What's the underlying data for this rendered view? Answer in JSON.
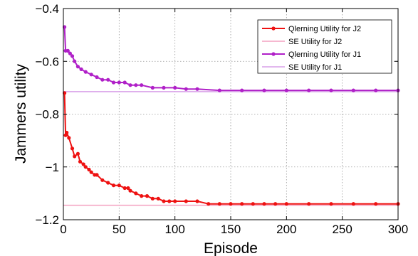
{
  "chart_data": {
    "type": "line",
    "title": "",
    "xlabel": "Episode",
    "ylabel": "Jammers utility",
    "xlim": [
      0,
      300
    ],
    "ylim": [
      -1.2,
      -0.4
    ],
    "xticks": [
      0,
      50,
      100,
      150,
      200,
      250,
      300
    ],
    "xtick_labels": [
      "0",
      "50",
      "100",
      "150",
      "200",
      "250",
      "300"
    ],
    "yticks": [
      -1.2,
      -1,
      -0.8,
      -0.6,
      -0.4
    ],
    "ytick_labels": [
      "−1.2",
      "−1",
      "−0.8",
      "−0.6",
      "−0.4"
    ],
    "grid": true,
    "legend_position": "top-right",
    "series": [
      {
        "name": "Qlerning Utility for J2",
        "color": "#ee1111",
        "marker": true,
        "x": [
          1,
          2,
          3,
          5,
          8,
          10,
          13,
          15,
          18,
          20,
          23,
          25,
          28,
          30,
          35,
          40,
          45,
          50,
          55,
          58,
          60,
          65,
          70,
          75,
          80,
          85,
          90,
          95,
          100,
          110,
          120,
          130,
          140,
          150,
          160,
          170,
          180,
          190,
          200,
          220,
          240,
          260,
          280,
          300
        ],
        "y": [
          -0.72,
          -0.88,
          -0.87,
          -0.89,
          -0.93,
          -0.96,
          -0.95,
          -0.98,
          -0.99,
          -1.0,
          -1.01,
          -1.02,
          -1.03,
          -1.03,
          -1.05,
          -1.06,
          -1.07,
          -1.07,
          -1.08,
          -1.08,
          -1.09,
          -1.1,
          -1.11,
          -1.11,
          -1.12,
          -1.12,
          -1.13,
          -1.13,
          -1.13,
          -1.13,
          -1.13,
          -1.14,
          -1.14,
          -1.14,
          -1.14,
          -1.14,
          -1.14,
          -1.14,
          -1.14,
          -1.14,
          -1.14,
          -1.14,
          -1.14,
          -1.14
        ]
      },
      {
        "name": "SE Utility for J2",
        "color": "#f4a0c0",
        "marker": false,
        "x": [
          0,
          300
        ],
        "y": [
          -1.145,
          -1.145
        ]
      },
      {
        "name": "Qlerning Utility for J1",
        "color": "#b020c8",
        "marker": true,
        "x": [
          1,
          2,
          4,
          6,
          8,
          10,
          13,
          16,
          20,
          25,
          30,
          35,
          40,
          45,
          50,
          55,
          60,
          65,
          70,
          80,
          90,
          100,
          110,
          120,
          140,
          160,
          180,
          200,
          220,
          240,
          260,
          280,
          300
        ],
        "y": [
          -0.47,
          -0.56,
          -0.56,
          -0.57,
          -0.58,
          -0.6,
          -0.62,
          -0.63,
          -0.64,
          -0.65,
          -0.66,
          -0.67,
          -0.67,
          -0.68,
          -0.68,
          -0.68,
          -0.69,
          -0.69,
          -0.69,
          -0.7,
          -0.7,
          -0.7,
          -0.705,
          -0.705,
          -0.71,
          -0.71,
          -0.71,
          -0.71,
          -0.71,
          -0.71,
          -0.71,
          -0.71,
          -0.71
        ]
      },
      {
        "name": "SE Utility for J1",
        "color": "#d8a0e8",
        "marker": false,
        "x": [
          0,
          300
        ],
        "y": [
          -0.715,
          -0.715
        ]
      }
    ]
  }
}
